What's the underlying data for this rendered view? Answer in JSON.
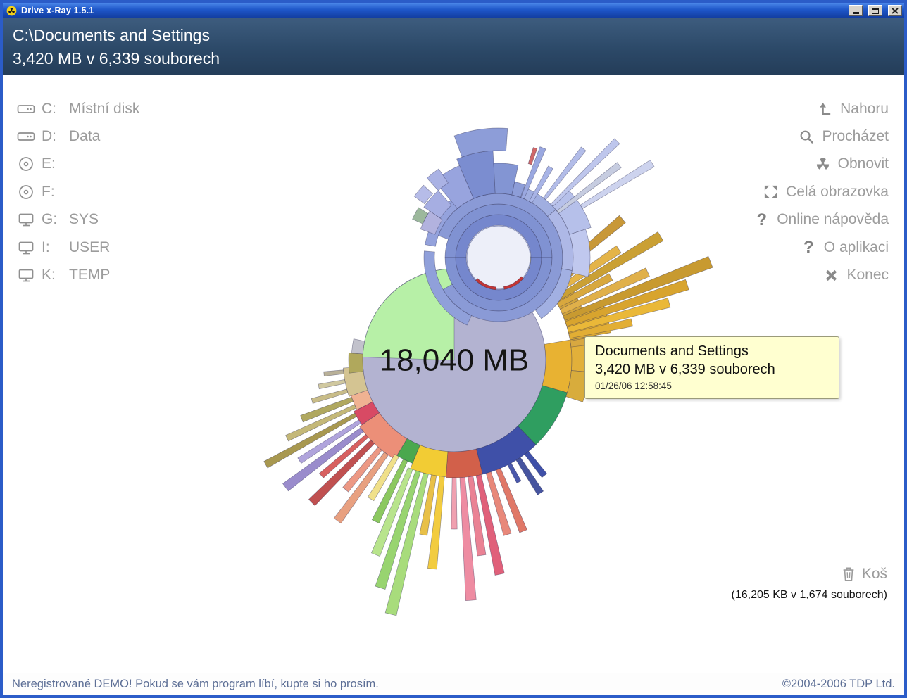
{
  "window": {
    "title": "Drive x-Ray 1.5.1"
  },
  "header": {
    "path": "C:\\Documents and Settings",
    "summary": "3,420 MB v 6,339 souborech"
  },
  "drives": [
    {
      "letter": "C:",
      "name": "Místní disk",
      "icon": "hard-drive"
    },
    {
      "letter": "D:",
      "name": "Data",
      "icon": "hard-drive"
    },
    {
      "letter": "E:",
      "name": "",
      "icon": "cd"
    },
    {
      "letter": "F:",
      "name": "",
      "icon": "cd"
    },
    {
      "letter": "G:",
      "name": "SYS",
      "icon": "network-drive"
    },
    {
      "letter": "I:",
      "name": "USER",
      "icon": "network-drive"
    },
    {
      "letter": "K:",
      "name": "TEMP",
      "icon": "network-drive"
    }
  ],
  "actions": [
    {
      "id": "up",
      "label": "Nahoru",
      "icon": "up-arrow"
    },
    {
      "id": "browse",
      "label": "Procházet",
      "icon": "magnifier"
    },
    {
      "id": "refresh",
      "label": "Obnovit",
      "icon": "radiation"
    },
    {
      "id": "fullscreen",
      "label": "Celá obrazovka",
      "icon": "fullscreen"
    },
    {
      "id": "online-help",
      "label": "Online nápověda",
      "icon": "question",
      "glyph": "?"
    },
    {
      "id": "about",
      "label": "O aplikaci",
      "icon": "question",
      "glyph": "?"
    },
    {
      "id": "exit",
      "label": "Konec",
      "icon": "close-x"
    }
  ],
  "tooltip": {
    "title": "Documents and Settings",
    "size": "3,420 MB v 6,339 souborech",
    "timestamp": "01/26/06 12:58:45"
  },
  "trash": {
    "label": "Koš",
    "size_text": "(16,205 KB v 1,674 souborech)"
  },
  "footer": {
    "demo_notice": "Neregistrované DEMO! Pokud se vám program líbí, kupte si ho prosím.",
    "copyright": "©2004-2006 TDP Ltd."
  },
  "chart_data": {
    "type": "sunburst",
    "center_label": "18,040 MB",
    "label_pos": [
      645,
      511
    ],
    "centers": {
      "M": [
        645,
        512
      ],
      "B": [
        708,
        366
      ]
    },
    "elements": [
      {
        "t": "circle",
        "c": "M",
        "r": 130,
        "f": "#b3b3d1",
        "s": "#8d8db0"
      },
      {
        "t": "arc",
        "c": "M",
        "a0": 90,
        "a1": 178,
        "r0": 0,
        "r1": 130,
        "f": "#b7f0a7"
      },
      {
        "t": "arc",
        "c": "M",
        "a0": -16,
        "a1": 10,
        "r0": 130,
        "r1": 167,
        "f": "#e8b232"
      },
      {
        "t": "arc",
        "c": "M",
        "a0": -46,
        "a1": -16,
        "r0": 130,
        "r1": 167,
        "f": "#2f9e60"
      },
      {
        "t": "arc",
        "c": "M",
        "a0": -76,
        "a1": -46,
        "r0": 130,
        "r1": 167,
        "f": "#3f50a8"
      },
      {
        "t": "arc",
        "c": "M",
        "a0": -94,
        "a1": -76,
        "r0": 130,
        "r1": 167,
        "f": "#d2604a"
      },
      {
        "t": "arc",
        "c": "M",
        "a0": -112,
        "a1": -94,
        "r0": 130,
        "r1": 166,
        "f": "#f2cc34"
      },
      {
        "t": "arc",
        "c": "M",
        "a0": -121,
        "a1": -112,
        "r0": 130,
        "r1": 158,
        "f": "#4aa84e"
      },
      {
        "t": "arc",
        "c": "M",
        "a0": -145,
        "a1": -121,
        "r0": 130,
        "r1": 164,
        "f": "#ec8f78"
      },
      {
        "t": "arc",
        "c": "M",
        "a0": -153,
        "a1": -145,
        "r0": 130,
        "r1": 160,
        "f": "#d84a64"
      },
      {
        "t": "arc",
        "c": "M",
        "a0": -161,
        "a1": -153,
        "r0": 130,
        "r1": 155,
        "f": "#f0b292"
      },
      {
        "t": "arc",
        "c": "M",
        "a0": -176,
        "a1": -161,
        "r0": 130,
        "r1": 158,
        "f": "#d4c492"
      },
      {
        "t": "arc",
        "c": "M",
        "a0": 176,
        "a1": 187,
        "r0": 130,
        "r1": 150,
        "f": "#b0a85c"
      },
      {
        "t": "arc",
        "c": "M",
        "a0": 168,
        "a1": 176,
        "r0": 130,
        "r1": 146,
        "f": "#c2c2cc"
      },
      {
        "t": "arc",
        "c": "M",
        "a0": 62,
        "a1": 70,
        "r0": 130,
        "r1": 144,
        "f": "#aab2dc"
      },
      {
        "t": "arc",
        "c": "M",
        "a0": 74,
        "a1": 80,
        "r0": 130,
        "r1": 142,
        "f": "#b8bce4"
      },
      {
        "t": "arc",
        "c": "M",
        "a0": -5,
        "a1": 10,
        "r0": 167,
        "r1": 205,
        "f": "#e2b03a"
      },
      {
        "t": "arc",
        "c": "M",
        "a0": -18,
        "a1": -5,
        "r0": 167,
        "r1": 192,
        "f": "#d8ac3c"
      },
      {
        "t": "arc",
        "c": "M",
        "a0": 10,
        "a1": 22,
        "r0": 167,
        "r1": 226,
        "f": "#d9a835"
      },
      {
        "t": "arc",
        "c": "M",
        "a0": 22,
        "a1": 32,
        "r0": 167,
        "r1": 196,
        "f": "#d2a43c"
      },
      {
        "t": "arc",
        "c": "M",
        "a0": 32,
        "a1": 42,
        "r0": 167,
        "r1": 186,
        "f": "#c8a84c"
      },
      {
        "t": "ray",
        "c": "M",
        "a": 8,
        "w": 3,
        "r0": 167,
        "r1": 212,
        "f": "#d8a840"
      },
      {
        "t": "ray",
        "c": "M",
        "a": 12,
        "w": 2.5,
        "r0": 167,
        "r1": 258,
        "f": "#e2ae34"
      },
      {
        "t": "ray",
        "c": "M",
        "a": 15,
        "w": 2.5,
        "r0": 167,
        "r1": 316,
        "f": "#eab838"
      },
      {
        "t": "ray",
        "c": "M",
        "a": 18,
        "w": 2.5,
        "r0": 167,
        "r1": 348,
        "f": "#d8a42e"
      },
      {
        "t": "ray",
        "c": "M",
        "a": 21,
        "w": 2.5,
        "r0": 167,
        "r1": 390,
        "f": "#c89a30"
      },
      {
        "t": "ray",
        "c": "M",
        "a": 24.5,
        "w": 2.5,
        "r0": 167,
        "r1": 302,
        "f": "#e0b04a"
      },
      {
        "t": "ray",
        "c": "M",
        "a": 28,
        "w": 2.5,
        "r0": 167,
        "r1": 252,
        "f": "#d8a83e"
      },
      {
        "t": "ray",
        "c": "M",
        "a": 31,
        "w": 2.5,
        "r0": 167,
        "r1": 342,
        "f": "#caa034"
      },
      {
        "t": "ray",
        "c": "M",
        "a": 34,
        "w": 2.5,
        "r0": 167,
        "r1": 282,
        "f": "#e4b448"
      },
      {
        "t": "ray",
        "c": "M",
        "a": 37,
        "w": 2.5,
        "r0": 167,
        "r1": 228,
        "f": "#d0a038"
      },
      {
        "t": "ray",
        "c": "M",
        "a": 40,
        "w": 2.5,
        "r0": 167,
        "r1": 312,
        "f": "#c89838"
      },
      {
        "t": "ray",
        "c": "M",
        "a": 44,
        "w": 2.5,
        "r0": 167,
        "r1": 242,
        "f": "#ba9040"
      },
      {
        "t": "ray",
        "c": "M",
        "a": 48,
        "w": 3,
        "r0": 167,
        "r1": 206,
        "f": "#c8a050"
      },
      {
        "t": "ray",
        "c": "M",
        "a": 52,
        "w": 3,
        "r0": 167,
        "r1": 188,
        "f": "#c2b478"
      },
      {
        "t": "ray",
        "c": "M",
        "a": -52,
        "w": 2.5,
        "r0": 167,
        "r1": 208,
        "f": "#3f50a8"
      },
      {
        "t": "ray",
        "c": "M",
        "a": -57,
        "w": 2.5,
        "r0": 167,
        "r1": 225,
        "f": "#46549f"
      },
      {
        "t": "ray",
        "c": "M",
        "a": -62,
        "w": 2,
        "r0": 167,
        "r1": 196,
        "f": "#4a58aa"
      },
      {
        "t": "ray",
        "c": "M",
        "a": -68,
        "w": 2.5,
        "r0": 167,
        "r1": 262,
        "f": "#e07868"
      },
      {
        "t": "ray",
        "c": "M",
        "a": -73,
        "w": 2.5,
        "r0": 167,
        "r1": 259,
        "f": "#e8887a"
      },
      {
        "t": "ray",
        "c": "M",
        "a": -78,
        "w": 2.5,
        "r0": 167,
        "r1": 311,
        "f": "#e0607a"
      },
      {
        "t": "ray",
        "c": "M",
        "a": -82,
        "w": 2.5,
        "r0": 167,
        "r1": 280,
        "f": "#ea8294"
      },
      {
        "t": "ray",
        "c": "M",
        "a": -86,
        "w": 2.5,
        "r0": 167,
        "r1": 342,
        "f": "#ee8ca2"
      },
      {
        "t": "ray",
        "c": "M",
        "a": -90,
        "w": 2,
        "r0": 167,
        "r1": 240,
        "f": "#f0a0b0"
      },
      {
        "t": "ray",
        "c": "M",
        "a": -96,
        "w": 2.5,
        "r0": 166,
        "r1": 298,
        "f": "#f2cc40"
      },
      {
        "t": "ray",
        "c": "M",
        "a": -100,
        "w": 2.5,
        "r0": 166,
        "r1": 252,
        "f": "#e8c048"
      },
      {
        "t": "ray",
        "c": "M",
        "a": -104,
        "w": 2.5,
        "r0": 166,
        "r1": 372,
        "f": "#a8dc7c"
      },
      {
        "t": "ray",
        "c": "M",
        "a": -108,
        "w": 2.5,
        "r0": 166,
        "r1": 340,
        "f": "#98d470"
      },
      {
        "t": "ray",
        "c": "M",
        "a": -112,
        "w": 2.5,
        "r0": 166,
        "r1": 298,
        "f": "#b8e48c"
      },
      {
        "t": "ray",
        "c": "M",
        "a": -116,
        "w": 2.5,
        "r0": 158,
        "r1": 255,
        "f": "#8cc860"
      },
      {
        "t": "ray",
        "c": "M",
        "a": -121,
        "w": 2.5,
        "r0": 158,
        "r1": 230,
        "f": "#f0e08a"
      },
      {
        "t": "ray",
        "c": "M",
        "a": -126,
        "w": 2.5,
        "r0": 164,
        "r1": 282,
        "f": "#e8a080"
      },
      {
        "t": "ray",
        "c": "M",
        "a": -130,
        "w": 2.5,
        "r0": 164,
        "r1": 240,
        "f": "#ec9884"
      },
      {
        "t": "ray",
        "c": "M",
        "a": -135,
        "w": 2.5,
        "r0": 164,
        "r1": 286,
        "f": "#c05050"
      },
      {
        "t": "ray",
        "c": "M",
        "a": -139,
        "w": 2,
        "r0": 164,
        "r1": 250,
        "f": "#d86060"
      },
      {
        "t": "ray",
        "c": "M",
        "a": -143,
        "w": 2.5,
        "r0": 164,
        "r1": 300,
        "f": "#9a8ccc"
      },
      {
        "t": "ray",
        "c": "M",
        "a": -147,
        "w": 2,
        "r0": 160,
        "r1": 262,
        "f": "#b0a4dc"
      },
      {
        "t": "ray",
        "c": "M",
        "a": -151,
        "w": 2,
        "r0": 160,
        "r1": 306,
        "f": "#a89850"
      },
      {
        "t": "ray",
        "c": "M",
        "a": -155,
        "w": 2,
        "r0": 155,
        "r1": 262,
        "f": "#c4b878"
      },
      {
        "t": "ray",
        "c": "M",
        "a": -159,
        "w": 2.5,
        "r0": 155,
        "r1": 232,
        "f": "#b0a860"
      },
      {
        "t": "ray",
        "c": "M",
        "a": -164,
        "w": 2,
        "r0": 158,
        "r1": 210,
        "f": "#c8bc88"
      },
      {
        "t": "ray",
        "c": "M",
        "a": -169,
        "w": 2,
        "r0": 158,
        "r1": 196,
        "f": "#d0c8a0"
      },
      {
        "t": "ray",
        "c": "M",
        "a": -174,
        "w": 2,
        "r0": 158,
        "r1": 186,
        "f": "#b8b098"
      },
      {
        "t": "arc",
        "c": "B",
        "a0": 0,
        "a1": 180,
        "r0": 46,
        "r1": 61,
        "f": "#7587cd"
      },
      {
        "t": "arc",
        "c": "B",
        "a0": 180,
        "a1": 360,
        "r0": 46,
        "r1": 61,
        "f": "#7587cd"
      },
      {
        "t": "arc",
        "c": "B",
        "a0": 0,
        "a1": 180,
        "r0": 61,
        "r1": 76,
        "f": "#8092d2"
      },
      {
        "t": "arc",
        "c": "B",
        "a0": 180,
        "a1": 360,
        "r0": 61,
        "r1": 76,
        "f": "#8092d2"
      },
      {
        "t": "arc",
        "c": "B",
        "a0": -150,
        "a1": 160,
        "r0": 76,
        "r1": 91,
        "f": "#8a9ad6"
      },
      {
        "t": "arc",
        "c": "B",
        "a0": 100,
        "a1": 170,
        "r0": 91,
        "r1": 106,
        "f": "#94a2dc"
      },
      {
        "t": "arc",
        "c": "B",
        "a0": 175,
        "a1": 245,
        "r0": 91,
        "r1": 106,
        "f": "#90a0da"
      },
      {
        "t": "arc",
        "c": "B",
        "a0": -55,
        "a1": -10,
        "r0": 91,
        "r1": 106,
        "f": "#a2b0e2"
      },
      {
        "t": "arc",
        "c": "B",
        "a0": -10,
        "a1": 40,
        "r0": 91,
        "r1": 106,
        "f": "#aeb8e6"
      },
      {
        "t": "arc",
        "c": "B",
        "a0": 40,
        "a1": 80,
        "r0": 91,
        "r1": 106,
        "f": "#a0aee0"
      },
      {
        "t": "arc",
        "c": "B",
        "a0": 93,
        "a1": 113,
        "r0": 91,
        "r1": 152,
        "f": "#7b8dd0"
      },
      {
        "t": "arc",
        "c": "B",
        "a0": 78,
        "a1": 93,
        "r0": 91,
        "r1": 134,
        "f": "#8395d3"
      },
      {
        "t": "arc",
        "c": "B",
        "a0": 86,
        "a1": 110,
        "r0": 152,
        "r1": 184,
        "f": "#8d9dd8"
      },
      {
        "t": "arc",
        "c": "B",
        "a0": 70,
        "a1": 78,
        "r0": 91,
        "r1": 110,
        "f": "#8d9dd8"
      },
      {
        "t": "arc",
        "c": "B",
        "a0": 113,
        "a1": 130,
        "r0": 91,
        "r1": 142,
        "f": "#98a4de"
      },
      {
        "t": "arc",
        "c": "B",
        "a0": 132,
        "a1": 146,
        "r0": 100,
        "r1": 128,
        "f": "#a6aee2"
      },
      {
        "t": "arc",
        "c": "B",
        "a0": 146,
        "a1": 160,
        "r0": 96,
        "r1": 118,
        "f": "#b2b2de"
      },
      {
        "t": "arc",
        "c": "B",
        "a0": 124,
        "a1": 132,
        "r0": 128,
        "r1": 152,
        "f": "#aab2e4"
      },
      {
        "t": "arc",
        "c": "B",
        "a0": 136,
        "a1": 144,
        "r0": 130,
        "r1": 148,
        "f": "#b6bce8"
      },
      {
        "t": "arc",
        "c": "B",
        "a0": 148,
        "a1": 156,
        "r0": 118,
        "r1": 134,
        "f": "#9cb89c"
      },
      {
        "t": "arc",
        "c": "B",
        "a0": 18,
        "a1": 45,
        "r0": 106,
        "r1": 138,
        "f": "#b6c0ea"
      },
      {
        "t": "arc",
        "c": "B",
        "a0": -12,
        "a1": 18,
        "r0": 106,
        "r1": 130,
        "f": "#c0c8ee"
      },
      {
        "t": "ray",
        "c": "B",
        "a": 68,
        "w": 3,
        "r0": 91,
        "r1": 168,
        "f": "#9aa8e0"
      },
      {
        "t": "ray",
        "c": "B",
        "a": 60,
        "w": 3,
        "r0": 91,
        "r1": 148,
        "f": "#a8b4e6"
      },
      {
        "t": "ray",
        "c": "B",
        "a": 52,
        "w": 2.5,
        "r0": 106,
        "r1": 196,
        "f": "#b2bce8"
      },
      {
        "t": "ray",
        "c": "B",
        "a": 44.5,
        "w": 2.5,
        "r0": 106,
        "r1": 236,
        "f": "#bec6ec"
      },
      {
        "t": "ray",
        "c": "B",
        "a": 37.5,
        "w": 2.5,
        "r0": 106,
        "r1": 216,
        "f": "#c6cce0"
      },
      {
        "t": "ray",
        "c": "B",
        "a": 31.5,
        "w": 2.5,
        "r0": 138,
        "r1": 256,
        "f": "#cdd3ee"
      },
      {
        "t": "ray",
        "c": "B",
        "a": 71.5,
        "w": 2,
        "r0": 140,
        "r1": 164,
        "f": "#d06868"
      },
      {
        "t": "circle",
        "c": "B",
        "r": 45,
        "f": "#edeff9",
        "s": "#8a92bc"
      },
      {
        "t": "arc",
        "c": "B",
        "a0": -135,
        "a1": -95,
        "r0": 42,
        "r1": 46,
        "f": "#c23535"
      },
      {
        "t": "arc",
        "c": "B",
        "a0": -80,
        "a1": -40,
        "r0": 42,
        "r1": 46,
        "f": "#c23535"
      }
    ]
  }
}
